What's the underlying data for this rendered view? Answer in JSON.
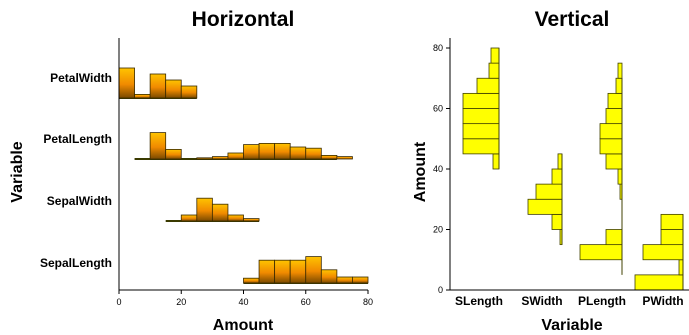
{
  "chart_data": [
    {
      "type": "bar",
      "subtype": "horizontal-histograms",
      "title": "Horizontal",
      "xlabel": "Amount",
      "ylabel": "Variable",
      "xlim": [
        0,
        80
      ],
      "xticks": [
        "0",
        "20",
        "40",
        "60",
        "80"
      ],
      "colors": {
        "fill_top": "#ffc400",
        "fill_bottom": "#c46a00",
        "stroke": "#3a2a00",
        "baseline": "#3a3a00"
      },
      "series": [
        {
          "name": "PetalWidth",
          "bin_width": 5,
          "range": [
            0,
            25
          ],
          "bins": [
            [
              0,
              5,
              0.25
            ],
            [
              5,
              10,
              0.03
            ],
            [
              10,
              15,
              0.2
            ],
            [
              15,
              20,
              0.15
            ],
            [
              20,
              25,
              0.1
            ]
          ]
        },
        {
          "name": "PetalLength",
          "bin_width": 5,
          "range": [
            5,
            70
          ],
          "bins": [
            [
              10,
              15,
              0.22
            ],
            [
              15,
              20,
              0.08
            ],
            [
              25,
              30,
              0.01
            ],
            [
              30,
              35,
              0.02
            ],
            [
              35,
              40,
              0.05
            ],
            [
              40,
              45,
              0.12
            ],
            [
              45,
              50,
              0.13
            ],
            [
              50,
              55,
              0.13
            ],
            [
              55,
              60,
              0.1
            ],
            [
              60,
              65,
              0.09
            ],
            [
              65,
              70,
              0.03
            ],
            [
              70,
              75,
              0.02
            ]
          ]
        },
        {
          "name": "SepalWidth",
          "bin_width": 5,
          "range": [
            15,
            45
          ],
          "bins": [
            [
              20,
              25,
              0.05
            ],
            [
              25,
              30,
              0.19
            ],
            [
              30,
              35,
              0.14
            ],
            [
              35,
              40,
              0.05
            ],
            [
              40,
              45,
              0.02
            ]
          ]
        },
        {
          "name": "SepalLength",
          "bin_width": 5,
          "range": [
            40,
            80
          ],
          "bins": [
            [
              40,
              45,
              0.04
            ],
            [
              45,
              50,
              0.19
            ],
            [
              50,
              55,
              0.19
            ],
            [
              55,
              60,
              0.19
            ],
            [
              60,
              65,
              0.22
            ],
            [
              65,
              70,
              0.11
            ],
            [
              70,
              75,
              0.05
            ],
            [
              75,
              80,
              0.05
            ]
          ]
        }
      ]
    },
    {
      "type": "bar",
      "subtype": "vertical-histograms",
      "title": "Vertical",
      "xlabel": "Variable",
      "ylabel": "Amount",
      "ylim": [
        0,
        80
      ],
      "yticks": [
        "0",
        "20",
        "40",
        "60",
        "80"
      ],
      "colors": {
        "fill": "#ffff00",
        "stroke": "#404000"
      },
      "series": [
        {
          "name": "SLength",
          "range": [
            40,
            80
          ],
          "bins": [
            [
              40,
              45,
              0.03
            ],
            [
              45,
              50,
              0.18
            ],
            [
              50,
              55,
              0.18
            ],
            [
              55,
              60,
              0.18
            ],
            [
              60,
              65,
              0.18
            ],
            [
              65,
              70,
              0.11
            ],
            [
              70,
              75,
              0.05
            ],
            [
              75,
              80,
              0.04
            ]
          ]
        },
        {
          "name": "SWidth",
          "range": [
            15,
            45
          ],
          "bins": [
            [
              15,
              20,
              0.01
            ],
            [
              20,
              25,
              0.05
            ],
            [
              25,
              30,
              0.17
            ],
            [
              30,
              35,
              0.13
            ],
            [
              35,
              40,
              0.05
            ],
            [
              40,
              45,
              0.02
            ]
          ]
        },
        {
          "name": "PLength",
          "range": [
            5,
            70
          ],
          "bins": [
            [
              10,
              15,
              0.21
            ],
            [
              15,
              20,
              0.08
            ],
            [
              30,
              35,
              0.01
            ],
            [
              35,
              40,
              0.02
            ],
            [
              40,
              45,
              0.08
            ],
            [
              45,
              50,
              0.11
            ],
            [
              50,
              55,
              0.11
            ],
            [
              55,
              60,
              0.08
            ],
            [
              60,
              65,
              0.07
            ],
            [
              65,
              70,
              0.03
            ],
            [
              70,
              75,
              0.02
            ]
          ]
        },
        {
          "name": "PWidth",
          "range": [
            0,
            25
          ],
          "bins": [
            [
              0,
              5,
              0.24
            ],
            [
              5,
              10,
              0.02
            ],
            [
              10,
              15,
              0.2
            ],
            [
              15,
              20,
              0.11
            ],
            [
              20,
              25,
              0.11
            ]
          ]
        }
      ]
    }
  ]
}
